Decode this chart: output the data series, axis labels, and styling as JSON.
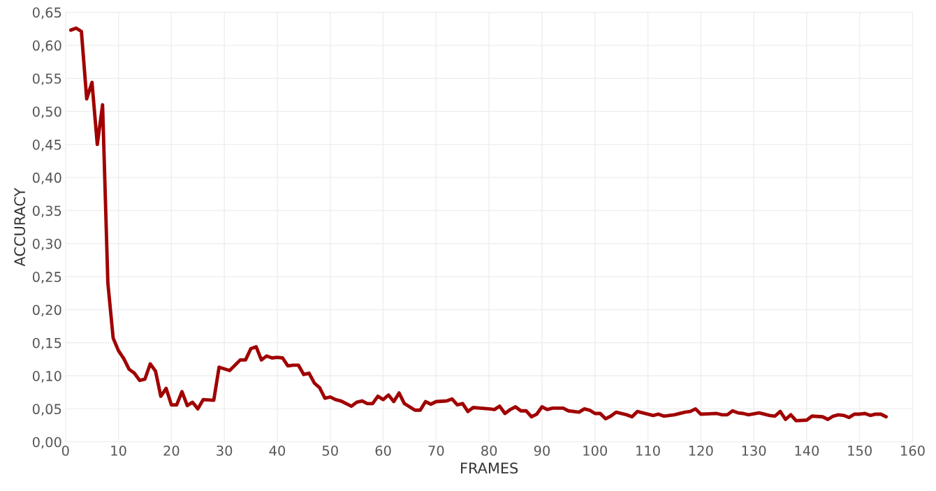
{
  "chart_data": {
    "type": "line",
    "xlabel": "FRAMES",
    "ylabel": "ACCURACY",
    "x": [
      1,
      2,
      3,
      4,
      5,
      6,
      7,
      8,
      9,
      10,
      11,
      12,
      13,
      14,
      15,
      16,
      17,
      18,
      19,
      20,
      21,
      22,
      23,
      24,
      25,
      26,
      28,
      29,
      31,
      33,
      34,
      35,
      36,
      37,
      38,
      39,
      40,
      41,
      42,
      43,
      44,
      45,
      46,
      47,
      48,
      49,
      50,
      51,
      52,
      54,
      55,
      56,
      57,
      58,
      59,
      60,
      61,
      62,
      63,
      64,
      65,
      66,
      67,
      68,
      69,
      70,
      72,
      73,
      74,
      75,
      76,
      77,
      80,
      81,
      82,
      83,
      84,
      85,
      86,
      87,
      88,
      89,
      90,
      91,
      92,
      94,
      95,
      97,
      98,
      99,
      100,
      101,
      102,
      103,
      104,
      106,
      107,
      108,
      111,
      112,
      113,
      115,
      117,
      118,
      119,
      120,
      123,
      124,
      125,
      126,
      127,
      128,
      129,
      131,
      133,
      134,
      135,
      136,
      137,
      138,
      140,
      141,
      143,
      144,
      145,
      146,
      147,
      148,
      149,
      150,
      151,
      152,
      153,
      154,
      155
    ],
    "series": [
      {
        "color": "#a00000",
        "values": [
          0.623,
          0.626,
          0.621,
          0.519,
          0.544,
          0.45,
          0.51,
          0.24,
          0.157,
          0.138,
          0.126,
          0.11,
          0.104,
          0.093,
          0.095,
          0.118,
          0.107,
          0.069,
          0.081,
          0.056,
          0.056,
          0.076,
          0.055,
          0.06,
          0.05,
          0.064,
          0.063,
          0.113,
          0.108,
          0.124,
          0.124,
          0.141,
          0.144,
          0.124,
          0.13,
          0.127,
          0.128,
          0.127,
          0.115,
          0.116,
          0.116,
          0.102,
          0.104,
          0.089,
          0.082,
          0.066,
          0.068,
          0.064,
          0.062,
          0.054,
          0.06,
          0.062,
          0.058,
          0.058,
          0.069,
          0.064,
          0.071,
          0.061,
          0.074,
          0.058,
          0.053,
          0.048,
          0.048,
          0.061,
          0.057,
          0.061,
          0.062,
          0.065,
          0.056,
          0.058,
          0.046,
          0.052,
          0.05,
          0.049,
          0.054,
          0.043,
          0.049,
          0.053,
          0.047,
          0.047,
          0.038,
          0.042,
          0.053,
          0.049,
          0.051,
          0.051,
          0.047,
          0.045,
          0.05,
          0.048,
          0.043,
          0.043,
          0.035,
          0.039,
          0.045,
          0.041,
          0.038,
          0.046,
          0.04,
          0.042,
          0.039,
          0.041,
          0.045,
          0.046,
          0.05,
          0.042,
          0.043,
          0.041,
          0.041,
          0.047,
          0.044,
          0.043,
          0.041,
          0.044,
          0.04,
          0.039,
          0.046,
          0.034,
          0.041,
          0.032,
          0.033,
          0.039,
          0.038,
          0.034,
          0.039,
          0.041,
          0.04,
          0.037,
          0.042,
          0.042,
          0.043,
          0.04,
          0.042,
          0.042,
          0.038
        ]
      }
    ],
    "xlim": [
      0,
      160
    ],
    "xticks": [
      0,
      10,
      20,
      30,
      40,
      50,
      60,
      70,
      80,
      90,
      100,
      110,
      120,
      130,
      140,
      150,
      160
    ],
    "ylim": [
      0,
      0.65
    ],
    "yticks": [
      {
        "value": 0,
        "label": "0,00"
      },
      {
        "value": 0.05,
        "label": "0,05"
      },
      {
        "value": 0.1,
        "label": "0,10"
      },
      {
        "value": 0.15,
        "label": "0,15"
      },
      {
        "value": 0.2,
        "label": "0,20"
      },
      {
        "value": 0.25,
        "label": "0,25"
      },
      {
        "value": 0.3,
        "label": "0,30"
      },
      {
        "value": 0.35,
        "label": "0,35"
      },
      {
        "value": 0.4,
        "label": "0,40"
      },
      {
        "value": 0.45,
        "label": "0,45"
      },
      {
        "value": 0.5,
        "label": "0,50"
      },
      {
        "value": 0.55,
        "label": "0,55"
      },
      {
        "value": 0.6,
        "label": "0,60"
      },
      {
        "value": 0.65,
        "label": "0,65"
      }
    ],
    "grid": true,
    "marker": "none",
    "line_style": "solid"
  }
}
